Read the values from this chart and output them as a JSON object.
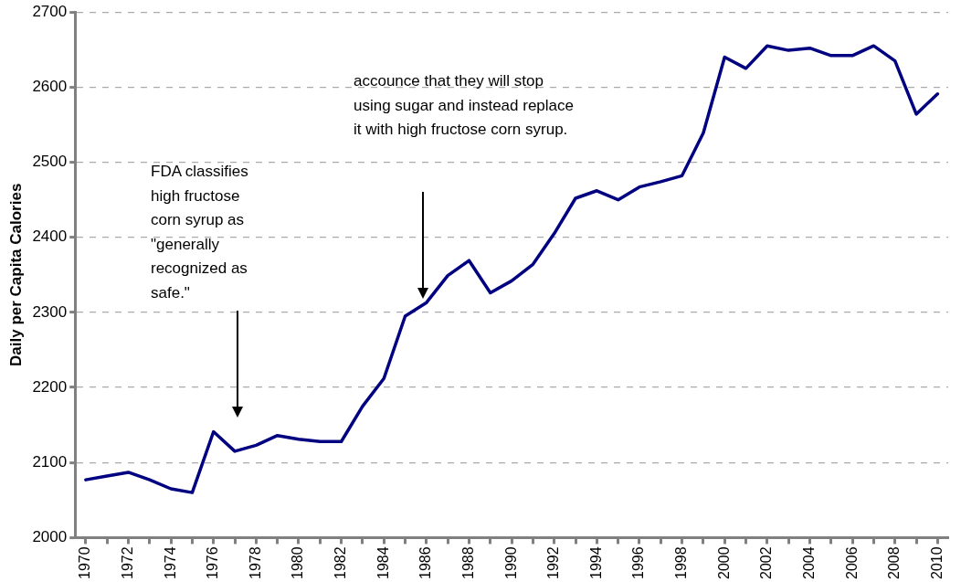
{
  "chart_data": {
    "type": "line",
    "ylabel": "Daily per Capita Calories",
    "categories": [
      "1970",
      null,
      "1972",
      null,
      "1974",
      null,
      "1976",
      null,
      "1978",
      null,
      "1980",
      null,
      "1982",
      null,
      "1984",
      null,
      "1986",
      null,
      "1988",
      null,
      "1990",
      null,
      "1992",
      null,
      "1994",
      null,
      "1996",
      null,
      "1998",
      null,
      "2000",
      null,
      "2002",
      null,
      "2004",
      null,
      "2006",
      null,
      "2008",
      null,
      "2010"
    ],
    "series": [
      {
        "color": "#000080",
        "values": [
          2077,
          2082,
          2087,
          2077,
          2065,
          2060,
          2141,
          2115,
          2123,
          2136,
          2131,
          2128,
          2128,
          2175,
          2212,
          2295,
          2313,
          2349,
          2369,
          2326,
          2342,
          2364,
          2405,
          2452,
          2462,
          2450,
          2467,
          2474,
          2482,
          2539,
          2640,
          2625,
          2655,
          2649,
          2652,
          2642,
          2642,
          2655,
          2635,
          2564,
          2591
        ]
      }
    ],
    "ylim": [
      2000,
      2700
    ],
    "yticks": [
      2000,
      2100,
      2200,
      2300,
      2400,
      2500,
      2600,
      2700
    ],
    "grid": "y",
    "legend": false,
    "marker": "none",
    "line_style": "solid",
    "annotations": [
      "FDA classifies high fructose corn syrup as \"generally recognized as safe.\"",
      "accounce that they will stop using sugar and instead replace it with high fructose corn syrup."
    ]
  }
}
